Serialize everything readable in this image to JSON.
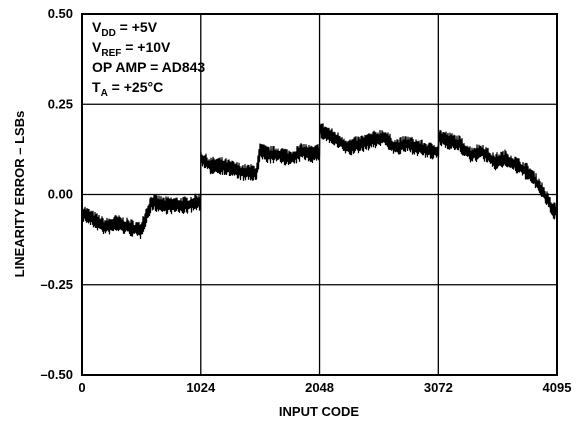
{
  "chart_data": {
    "type": "line",
    "title": "",
    "xlabel": "INPUT CODE",
    "ylabel": "LINEARITY ERROR – LSBs",
    "xlim": [
      0,
      4095
    ],
    "ylim": [
      -0.5,
      0.5
    ],
    "x_ticks": [
      0,
      1024,
      2048,
      3072,
      4095
    ],
    "x_tick_labels": [
      "0",
      "1024",
      "2048",
      "3072",
      "4095"
    ],
    "y_ticks": [
      0.5,
      0.25,
      0.0,
      -0.25,
      -0.5
    ],
    "y_tick_labels": [
      "0.50",
      "0.25",
      "0.00",
      "–0.25",
      "–0.50"
    ],
    "grid": true,
    "annotations": [
      {
        "main": "V",
        "sub": "DD",
        "rest": " = +5V"
      },
      {
        "main": "V",
        "sub": "REF",
        "rest": " = +10V"
      },
      {
        "main": "OP AMP = AD843",
        "sub": "",
        "rest": ""
      },
      {
        "main": "T",
        "sub": "A",
        "rest": " = +25°C"
      }
    ],
    "series": [
      {
        "noise_amplitude_lsb": 0.025,
        "x": [
          0,
          100,
          200,
          300,
          400,
          500,
          600,
          700,
          800,
          900,
          1000,
          1023,
          1024,
          1100,
          1200,
          1300,
          1400,
          1500,
          1536,
          1600,
          1700,
          1800,
          1900,
          2000,
          2047,
          2048,
          2100,
          2200,
          2300,
          2400,
          2500,
          2600,
          2700,
          2800,
          2900,
          3000,
          3071,
          3072,
          3150,
          3250,
          3350,
          3450,
          3550,
          3650,
          3750,
          3850,
          3950,
          4000,
          4050,
          4095
        ],
        "y": [
          -0.05,
          -0.07,
          -0.09,
          -0.08,
          -0.09,
          -0.1,
          -0.02,
          -0.03,
          -0.03,
          -0.03,
          -0.02,
          -0.02,
          0.1,
          0.08,
          0.08,
          0.07,
          0.06,
          0.06,
          0.12,
          0.11,
          0.11,
          0.1,
          0.12,
          0.11,
          0.12,
          0.18,
          0.17,
          0.15,
          0.13,
          0.14,
          0.15,
          0.16,
          0.13,
          0.14,
          0.13,
          0.12,
          0.12,
          0.16,
          0.15,
          0.14,
          0.11,
          0.12,
          0.09,
          0.1,
          0.08,
          0.06,
          0.02,
          -0.01,
          -0.04,
          -0.05
        ]
      }
    ]
  }
}
